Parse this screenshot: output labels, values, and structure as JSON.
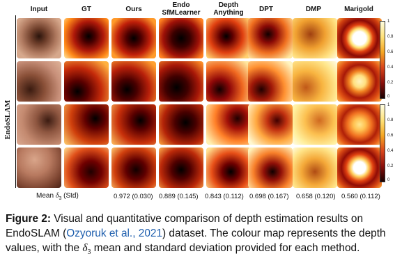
{
  "columns": [
    "Input",
    "GT",
    "Ours",
    "Endo\nSfMLearner",
    "Depth\nAnything",
    "DPT",
    "DMP",
    "Marigold"
  ],
  "row_label": "EndoSLAM",
  "scores_label": "Mean δ3 (Std)",
  "scores": [
    "0.972 (0.030)",
    "0.889 (0.145)",
    "0.843 (0.112)",
    "0.698 (0.167)",
    "0.658 (0.120)",
    "0.560 (0.112)"
  ],
  "colorbar_ticks": [
    "1",
    "0.8",
    "0.6",
    "0.4",
    "0.2",
    "0"
  ],
  "caption": {
    "label": "Figure 2:",
    "text_before": " Visual and quantitative comparison of depth estimation results on EndoSLAM (",
    "citation": "Ozyoruk et al., 2021",
    "text_after": ") dataset. The colour map represents the depth values, with the ",
    "delta": "δ3",
    "text_end": " mean and standard deviation provided for each method."
  },
  "colors": {
    "citation": "#1f5fae"
  }
}
